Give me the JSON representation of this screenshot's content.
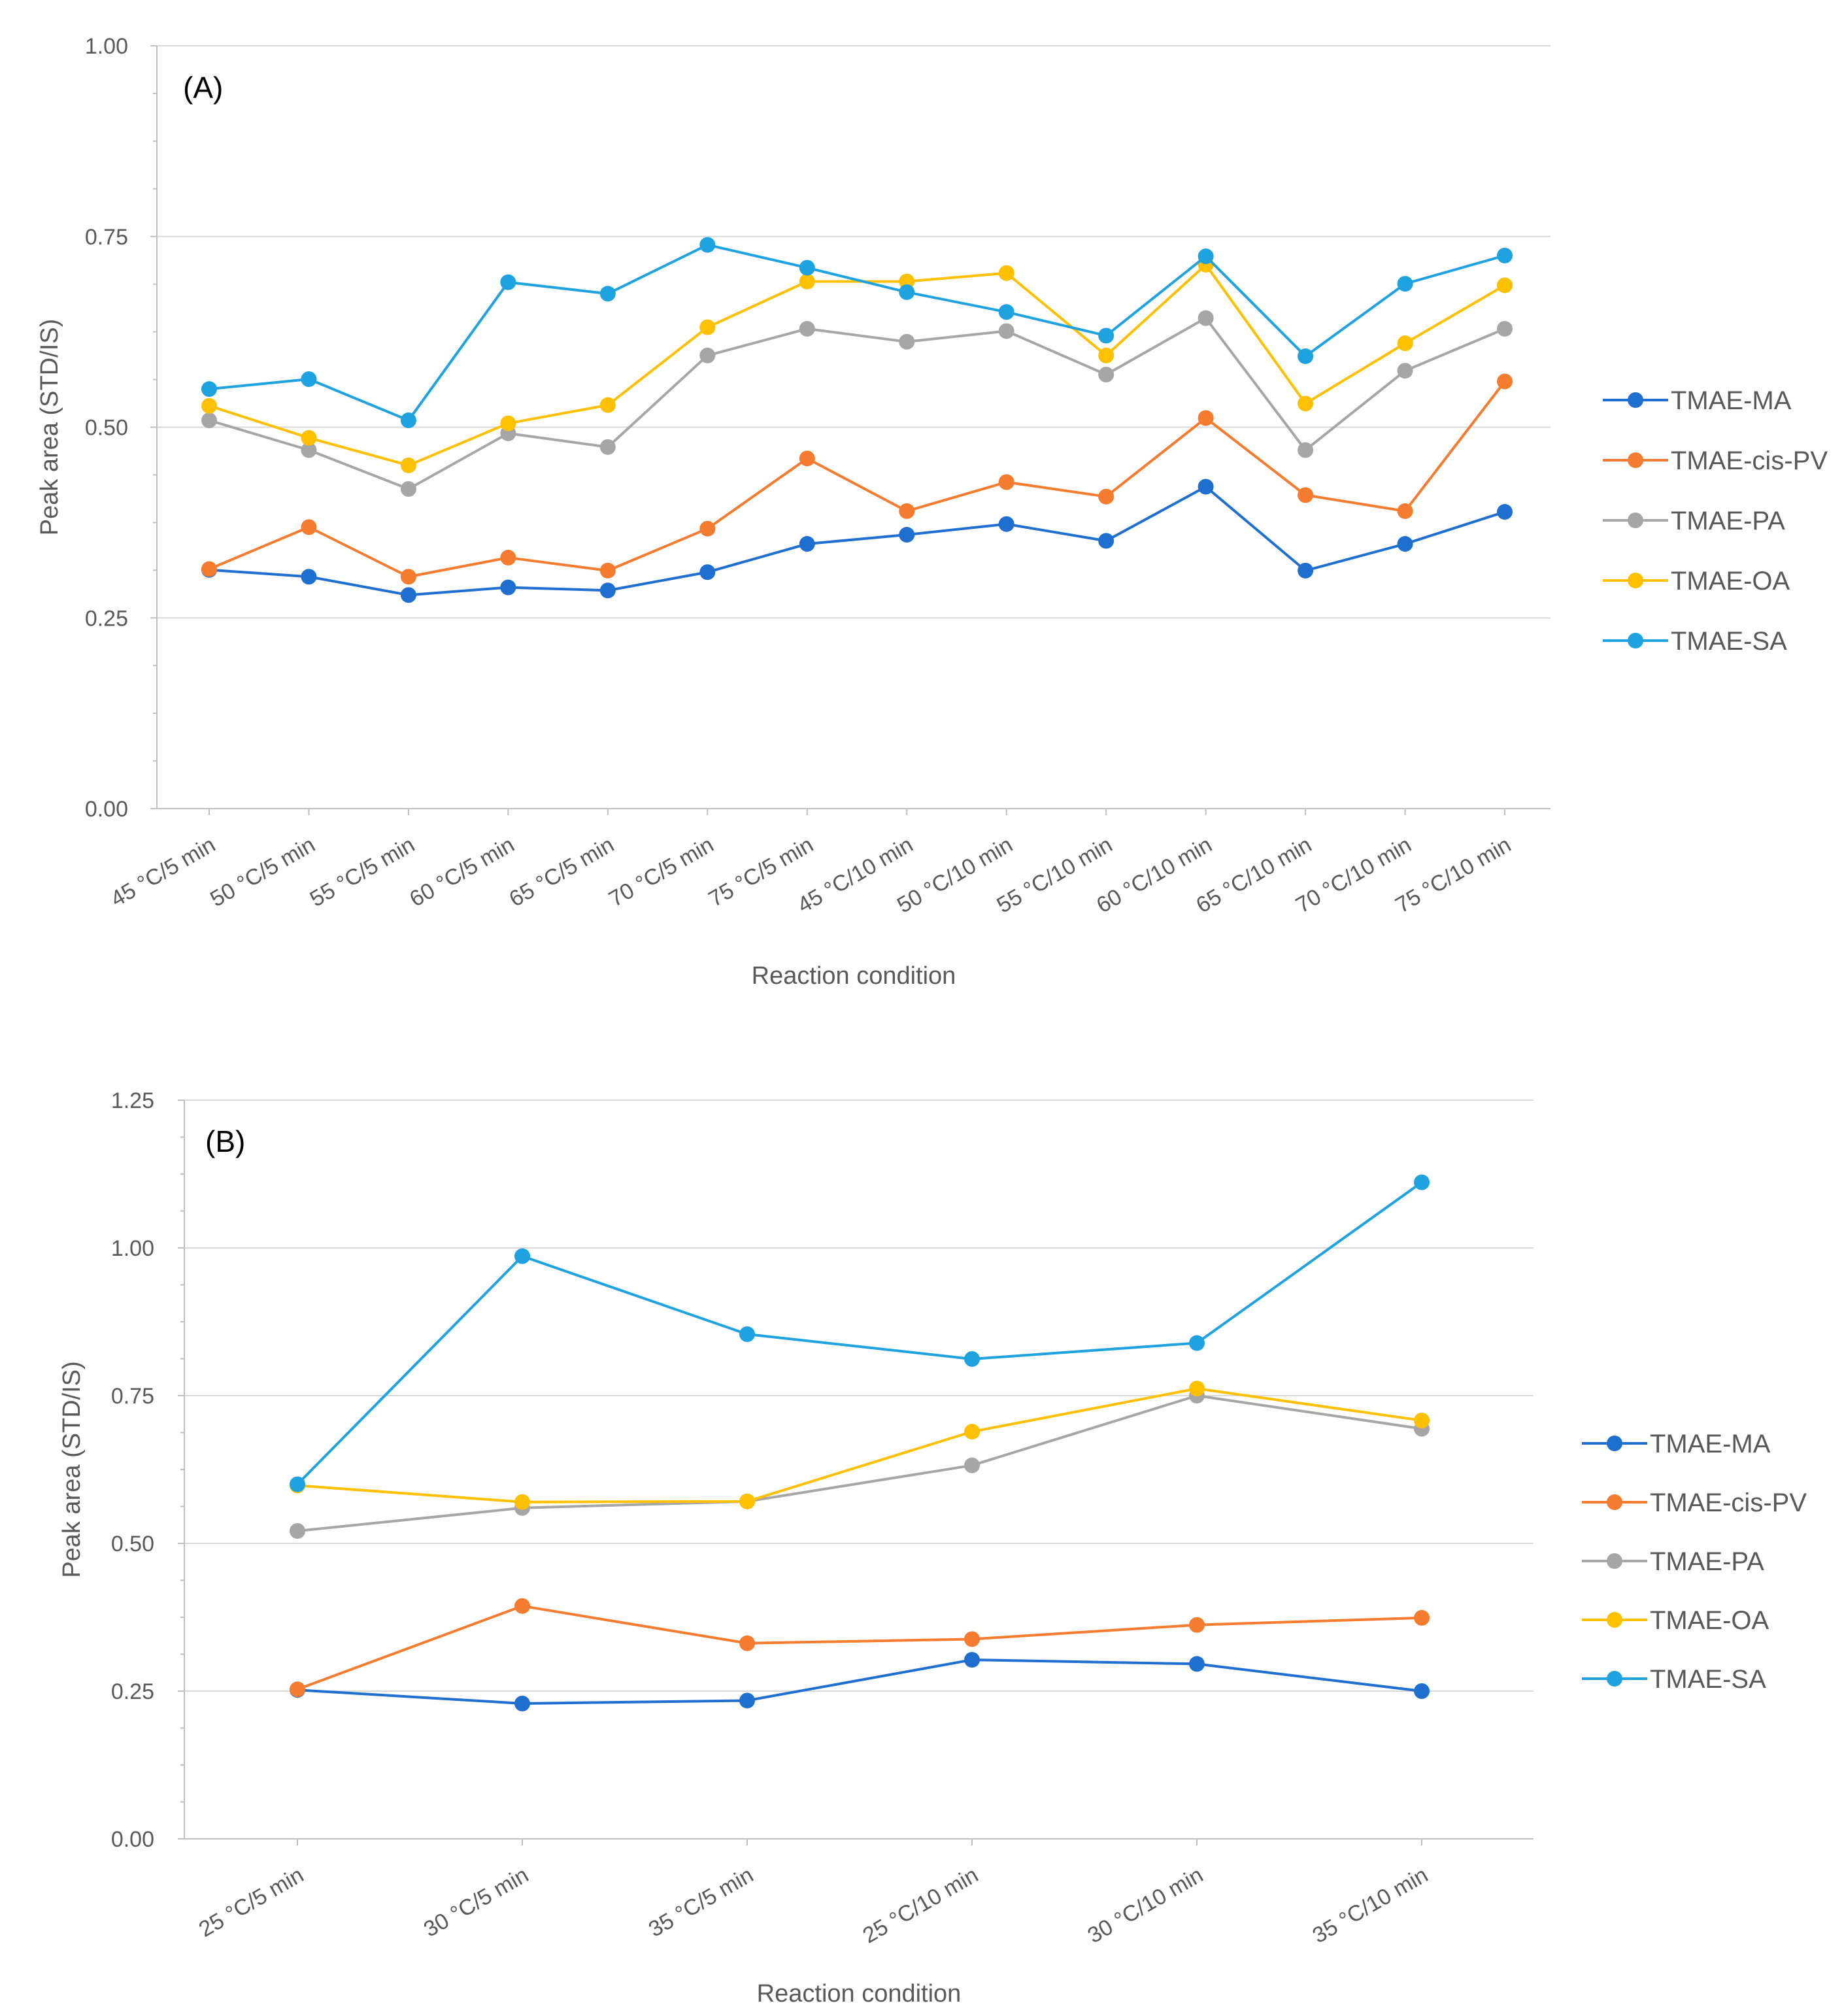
{
  "chart_data": [
    {
      "type": "line",
      "panel_label": "(A)",
      "title": "",
      "xlabel": "Reaction condition",
      "ylabel": "Peak area (STD/IS)",
      "ylim": [
        0,
        1.0
      ],
      "yticks": [
        "0.00",
        "0.25",
        "0.50",
        "0.75",
        "1.00"
      ],
      "grid": true,
      "legend": "right",
      "categories": [
        "45 °C/5 min",
        "50 °C/5 min",
        "55 °C/5 min",
        "60 °C/5 min",
        "65 °C/5 min",
        "70 °C/5 min",
        "75 °C/5 min",
        "45 °C/10 min",
        "50 °C/10 min",
        "55 °C/10 min",
        "60 °C/10 min",
        "65 °C/10 min",
        "70 °C/10 min",
        "75 °C/10 min"
      ],
      "series": [
        {
          "name": "TMAE-MA",
          "color": "#1f6fd1",
          "values": [
            0.313,
            0.304,
            0.28,
            0.29,
            0.286,
            0.31,
            0.347,
            0.359,
            0.373,
            0.351,
            0.422,
            0.312,
            0.347,
            0.389
          ]
        },
        {
          "name": "TMAE-cis-PV",
          "color": "#f57c2e",
          "values": [
            0.314,
            0.369,
            0.304,
            0.329,
            0.312,
            0.367,
            0.459,
            0.39,
            0.428,
            0.409,
            0.512,
            0.411,
            0.39,
            0.56
          ]
        },
        {
          "name": "TMAE-PA",
          "color": "#a6a6a6",
          "values": [
            0.509,
            0.47,
            0.419,
            0.492,
            0.474,
            0.594,
            0.629,
            0.612,
            0.626,
            0.569,
            0.643,
            0.47,
            0.574,
            0.629
          ]
        },
        {
          "name": "TMAE-OA",
          "color": "#ffc000",
          "values": [
            0.528,
            0.486,
            0.45,
            0.505,
            0.529,
            0.631,
            0.691,
            0.691,
            0.702,
            0.594,
            0.713,
            0.531,
            0.61,
            0.686
          ]
        },
        {
          "name": "TMAE-SA",
          "color": "#1fa3e0",
          "values": [
            0.55,
            0.563,
            0.509,
            0.69,
            0.675,
            0.739,
            0.709,
            0.677,
            0.651,
            0.62,
            0.724,
            0.593,
            0.688,
            0.725
          ]
        }
      ]
    },
    {
      "type": "line",
      "panel_label": "(B)",
      "title": "",
      "xlabel": "Reaction condition",
      "ylabel": "Peak area (STD/IS)",
      "ylim": [
        0,
        1.25
      ],
      "yticks": [
        "0.00",
        "0.25",
        "0.50",
        "0.75",
        "1.00",
        "1.25"
      ],
      "grid": true,
      "legend": "right",
      "categories": [
        "25 °C/5 min",
        "30 °C/5 min",
        "35 °C/5 min",
        "25 °C/10 min",
        "30 °C/10 min",
        "35 °C/10 min"
      ],
      "series": [
        {
          "name": "TMAE-MA",
          "color": "#1f6fd1",
          "values": [
            0.252,
            0.229,
            0.234,
            0.303,
            0.296,
            0.25
          ]
        },
        {
          "name": "TMAE-cis-PV",
          "color": "#f57c2e",
          "values": [
            0.253,
            0.394,
            0.331,
            0.338,
            0.362,
            0.374
          ]
        },
        {
          "name": "TMAE-PA",
          "color": "#a6a6a6",
          "values": [
            0.521,
            0.56,
            0.571,
            0.632,
            0.75,
            0.694
          ]
        },
        {
          "name": "TMAE-OA",
          "color": "#ffc000",
          "values": [
            0.598,
            0.57,
            0.571,
            0.689,
            0.762,
            0.708
          ]
        },
        {
          "name": "TMAE-SA",
          "color": "#1fa3e0",
          "values": [
            0.6,
            0.986,
            0.854,
            0.812,
            0.839,
            1.111
          ]
        }
      ]
    }
  ]
}
